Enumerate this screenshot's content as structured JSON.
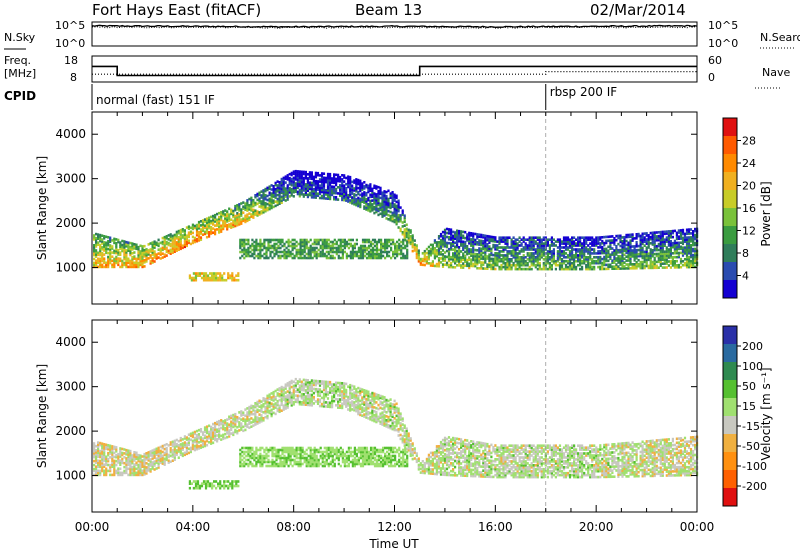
{
  "header": {
    "station": "Fort Hays East (fitACF)",
    "beam": "Beam 13",
    "date": "02/Mar/2014"
  },
  "noise_panel": {
    "left_label": "N.Sky",
    "right_label": "N.Search",
    "left_ticks": [
      "10^5",
      "10^0"
    ],
    "right_ticks": [
      "10^5",
      "10^0"
    ]
  },
  "freq_panel": {
    "left_label_1": "Freq.",
    "left_label_2": "[MHz]",
    "left_ticks": [
      "18",
      "8"
    ],
    "right_label": "Nave",
    "right_ticks": [
      "60",
      "0"
    ]
  },
  "cpid_panel": {
    "label": "CPID",
    "modes": [
      {
        "name": "normal (fast) 151 IF",
        "start_hour": 0
      },
      {
        "name": "rbsp 200 IF",
        "start_hour": 18
      }
    ]
  },
  "x_axis": {
    "title": "Time UT",
    "ticks": [
      "00:00",
      "04:00",
      "08:00",
      "12:00",
      "16:00",
      "20:00",
      "00:00"
    ]
  },
  "panels": [
    {
      "id": "power",
      "ylabel": "Slant Range [km]",
      "yticks": [
        "4000",
        "3000",
        "2000",
        "1000"
      ],
      "colorbar_label": "Power [dB]",
      "colorbar_ticks": [
        "28",
        "24",
        "20",
        "16",
        "12",
        "8",
        "4"
      ],
      "colors": [
        "#1400d2",
        "#2a4bb0",
        "#2f7d5a",
        "#3a9c40",
        "#7ac23a",
        "#c8cc28",
        "#f0b020",
        "#ff8a00",
        "#ff5a00",
        "#e01010"
      ]
    },
    {
      "id": "velocity",
      "ylabel": "Slant Range [km]",
      "yticks": [
        "4000",
        "3000",
        "2000",
        "1000"
      ],
      "colorbar_label": "Velocity [m s⁻¹]",
      "colorbar_ticks": [
        "200",
        "100",
        "50",
        "15",
        "-15",
        "-50",
        "-100",
        "-200"
      ],
      "colors": [
        "#2a30a8",
        "#2a6aa0",
        "#2f8a50",
        "#55c030",
        "#a0e070",
        "#c8c8c0",
        "#f0b040",
        "#ff9010",
        "#ff6000",
        "#e01010"
      ]
    }
  ],
  "chart_data": [
    {
      "type": "line",
      "title": "N.Sky / N.Search",
      "x_range_hours": [
        0,
        24
      ],
      "ylim_log10": [
        0,
        5
      ],
      "series": [
        {
          "name": "N.Sky",
          "x": [
            0,
            4,
            8,
            12,
            16,
            20,
            24
          ],
          "y_log10": [
            4.2,
            4.1,
            4.0,
            4.1,
            4.0,
            4.1,
            4.2
          ]
        },
        {
          "name": "N.Search",
          "x": [
            0,
            4,
            8,
            12,
            16,
            20,
            24
          ],
          "y_log10": [
            3.9,
            3.9,
            3.8,
            3.9,
            3.8,
            3.9,
            3.9
          ]
        }
      ]
    },
    {
      "type": "line",
      "title": "Freq. [MHz] / Nave",
      "x_range_hours": [
        0,
        24
      ],
      "ylim": [
        8,
        18
      ],
      "series": [
        {
          "name": "Freq.",
          "x": [
            0,
            1.0,
            1.0,
            13.0,
            13.0,
            24
          ],
          "y": [
            14,
            14,
            10.5,
            10.5,
            14,
            14
          ]
        },
        {
          "name": "Nave",
          "x": [
            0,
            18,
            18,
            24
          ],
          "y": [
            11,
            11,
            12,
            12
          ]
        }
      ]
    },
    {
      "type": "heatmap",
      "title": "Power [dB]",
      "x_range_hours": [
        0,
        24
      ],
      "ylim_km": [
        180,
        4500
      ],
      "clim_db": [
        0,
        30
      ],
      "bands": [
        {
          "name": "main-band-lower",
          "hours": [
            0,
            2,
            4,
            6,
            8,
            10,
            12,
            13,
            14,
            16,
            20,
            24
          ],
          "km_low": [
            1000,
            1000,
            1550,
            2000,
            2600,
            2500,
            2000,
            1050,
            1000,
            950,
            950,
            1000
          ],
          "km_high": [
            1800,
            1500,
            2000,
            2500,
            3200,
            3100,
            2700,
            1300,
            1900,
            1700,
            1700,
            1900
          ],
          "power_db": [
            20,
            22,
            23,
            20,
            8,
            8,
            12,
            24,
            14,
            14,
            12,
            14
          ]
        },
        {
          "name": "mid-patch",
          "hour_start": 5.8,
          "hour_end": 12.5,
          "km_low": 1200,
          "km_high": 1650,
          "power_db": 10
        },
        {
          "name": "low-patch",
          "hour_start": 3.8,
          "hour_end": 5.8,
          "km_low": 700,
          "km_high": 900,
          "power_db": 18
        }
      ]
    },
    {
      "type": "heatmap",
      "title": "Velocity [m s⁻¹]",
      "x_range_hours": [
        0,
        24
      ],
      "ylim_km": [
        180,
        4500
      ],
      "clim": [
        -250,
        250
      ],
      "bands": [
        {
          "name": "main-band",
          "hours": [
            0,
            2,
            4,
            6,
            8,
            10,
            12,
            13,
            14,
            16,
            20,
            24
          ],
          "km_low": [
            1000,
            1000,
            1550,
            2000,
            2600,
            2500,
            2000,
            1050,
            1000,
            950,
            950,
            1000
          ],
          "km_high": [
            1800,
            1500,
            2000,
            2500,
            3200,
            3100,
            2700,
            1300,
            1900,
            1700,
            1700,
            1900
          ],
          "velocity": [
            -30,
            -20,
            -20,
            -10,
            0,
            0,
            0,
            -10,
            0,
            0,
            0,
            -20
          ]
        },
        {
          "name": "mid-patch",
          "hour_start": 5.8,
          "hour_end": 12.5,
          "km_low": 1200,
          "km_high": 1650,
          "velocity": 40
        },
        {
          "name": "low-patch",
          "hour_start": 3.8,
          "hour_end": 5.8,
          "km_low": 700,
          "km_high": 900,
          "velocity": 60
        }
      ]
    }
  ]
}
